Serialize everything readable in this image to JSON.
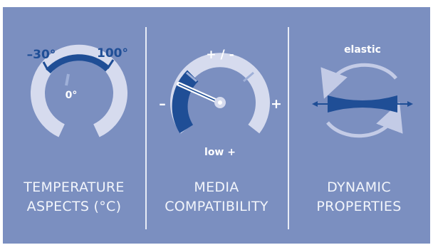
{
  "colors": {
    "background": "#7b8fc0",
    "gauge_light": "#d6dbee",
    "accent_dark": "#1f4e96",
    "text_light": "#f2f5fb"
  },
  "temperature": {
    "min_label": "–30°",
    "max_label": "100°",
    "zero_label": "0°",
    "caption_line1": "TEMPERATURE",
    "caption_line2": "ASPECTS (°C)"
  },
  "media": {
    "top_label": "+ / -",
    "minus_label": "–",
    "plus_label": "+",
    "bottom_label": "low +",
    "caption_line1": "MEDIA",
    "caption_line2": "COMPATIBILITY"
  },
  "dynamic": {
    "top_label": "elastic",
    "caption_line1": "DYNAMIC",
    "caption_line2": "PROPERTIES"
  }
}
